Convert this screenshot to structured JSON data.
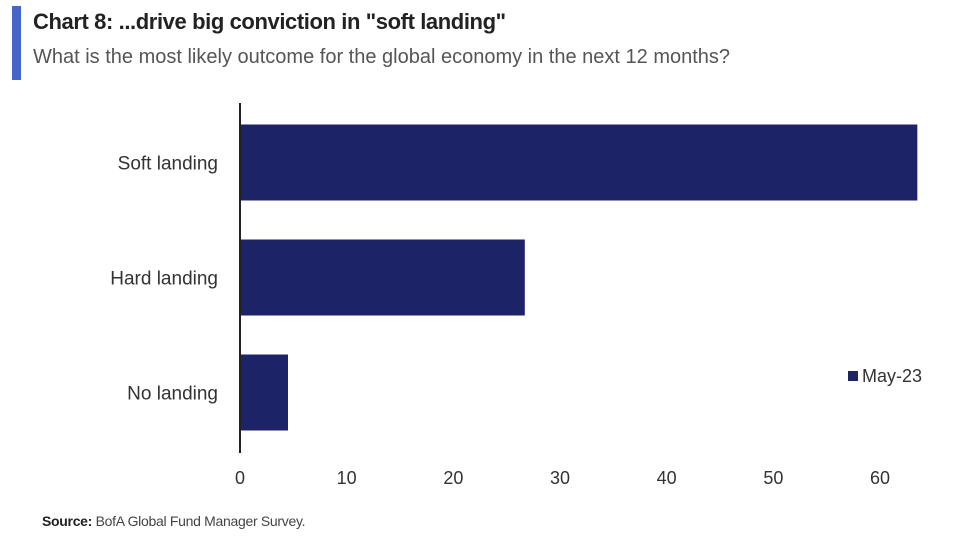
{
  "header": {
    "title": "Chart 8: ...drive big conviction in \"soft landing\"",
    "subtitle": "What is the most likely outcome for the global economy in the next 12 months?",
    "accent_color": "#4466cc"
  },
  "footer": {
    "source_label": "Source:",
    "source_text": "BofA Global Fund Manager Survey."
  },
  "chart_data": {
    "type": "bar",
    "orientation": "horizontal",
    "categories": [
      "Soft landing",
      "Hard landing",
      "No landing"
    ],
    "series": [
      {
        "name": "May-23",
        "values": [
          63.5,
          26.7,
          4.5
        ],
        "color": "#1c2366"
      }
    ],
    "xlim": [
      0,
      60
    ],
    "xticks": [
      0,
      10,
      20,
      30,
      40,
      50,
      60
    ],
    "grid": false,
    "legend_position": "right"
  }
}
